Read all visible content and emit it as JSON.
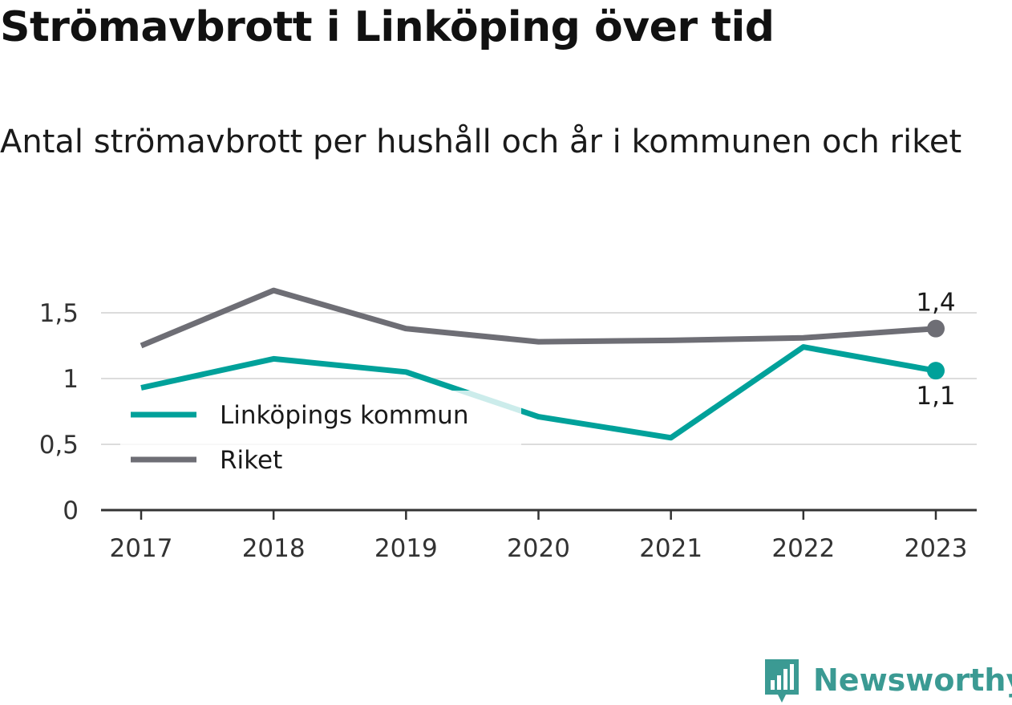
{
  "title": "Strömavbrott i Linköping över tid",
  "subtitle": "Antal strömavbrott per hushåll och år i kommunen och riket",
  "brand": {
    "name": "Newsworthy",
    "color": "#3b9a93",
    "icon": "bar-chart-speech-bubble-icon"
  },
  "colors": {
    "series_kommun": "#00a19a",
    "series_riket": "#6e6e75",
    "grid": "#dcdcdc",
    "axis": "#333333"
  },
  "chart_data": {
    "type": "line",
    "x": [
      "2017",
      "2018",
      "2019",
      "2020",
      "2021",
      "2022",
      "2023"
    ],
    "series": [
      {
        "name": "Linköpings kommun",
        "color": "#00a19a",
        "values": [
          0.93,
          1.15,
          1.05,
          0.71,
          0.55,
          1.24,
          1.06
        ],
        "end_label": "1,1"
      },
      {
        "name": "Riket",
        "color": "#6e6e75",
        "values": [
          1.25,
          1.67,
          1.38,
          1.28,
          1.29,
          1.31,
          1.38
        ],
        "end_label": "1,4"
      }
    ],
    "y_ticks": [
      {
        "value": 0,
        "label": "0"
      },
      {
        "value": 0.5,
        "label": "0,5"
      },
      {
        "value": 1,
        "label": "1"
      },
      {
        "value": 1.5,
        "label": "1,5"
      }
    ],
    "ylim": [
      0,
      1.75
    ],
    "grid": true,
    "legend": "bottom-left",
    "xlabel": "",
    "ylabel": ""
  }
}
